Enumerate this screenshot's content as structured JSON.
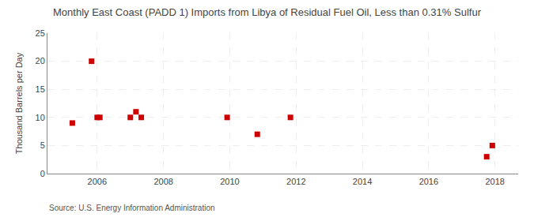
{
  "chart_data": {
    "type": "scatter",
    "title": "Monthly East Coast (PADD 1) Imports from Libya of Residual Fuel Oil, Less than 0.31% Sulfur",
    "ylabel": "Thousand Barrels per Day",
    "source": "Source: U.S. Energy Information Administration",
    "x": [
      2005.25,
      2005.83,
      2006.0,
      2006.08,
      2007.0,
      2007.17,
      2007.33,
      2009.92,
      2010.83,
      2011.83,
      2017.75,
      2017.92
    ],
    "values": [
      9,
      20,
      10,
      10,
      10,
      11,
      10,
      10,
      7,
      10,
      3,
      5
    ],
    "color": "#cc0000",
    "marker": "square",
    "xlim": [
      2004.5,
      2018.7
    ],
    "ylim": [
      0,
      25
    ],
    "xticks": [
      2006,
      2008,
      2010,
      2012,
      2014,
      2016,
      2018
    ],
    "yticks": [
      0,
      5,
      10,
      15,
      20,
      25
    ],
    "grid": true
  }
}
